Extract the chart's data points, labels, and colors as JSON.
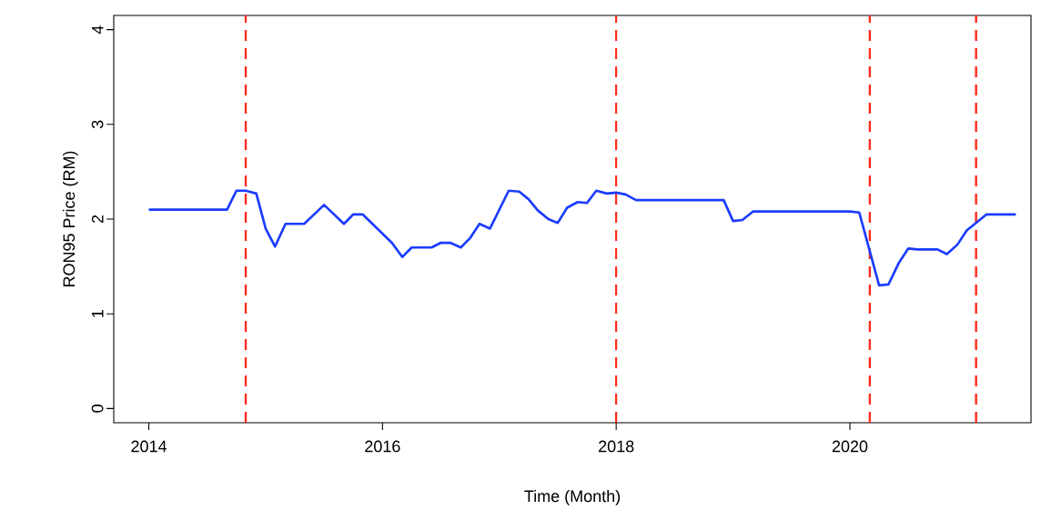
{
  "chart_data": {
    "type": "line",
    "xlabel": "Time (Month)",
    "ylabel": "RON95 Price (RM)",
    "xlim": [
      2013.7,
      2021.55
    ],
    "ylim": [
      -0.15,
      4.15
    ],
    "xticks": [
      2014,
      2016,
      2018,
      2020
    ],
    "yticks": [
      0,
      1,
      2,
      3,
      4
    ],
    "grid": false,
    "marker": "none",
    "line_style": "solid",
    "series": [
      {
        "color": "#1a3cff",
        "x": [
          2014.0,
          2014.67,
          2014.75,
          2014.83,
          2014.92,
          2015.0,
          2015.08,
          2015.17,
          2015.33,
          2015.5,
          2015.67,
          2015.75,
          2015.83,
          2016.08,
          2016.17,
          2016.25,
          2016.42,
          2016.5,
          2016.58,
          2016.67,
          2016.75,
          2016.83,
          2016.92,
          2017.08,
          2017.17,
          2017.25,
          2017.33,
          2017.42,
          2017.5,
          2017.58,
          2017.67,
          2017.75,
          2017.83,
          2017.92,
          2018.0,
          2018.08,
          2018.17,
          2018.92,
          2019.0,
          2019.08,
          2019.17,
          2020.0,
          2020.08,
          2020.25,
          2020.33,
          2020.42,
          2020.5,
          2020.58,
          2020.75,
          2020.83,
          2020.92,
          2021.0,
          2021.17,
          2021.42
        ],
        "values": [
          2.1,
          2.1,
          2.3,
          2.3,
          2.27,
          1.9,
          1.71,
          1.95,
          1.95,
          2.15,
          1.95,
          2.05,
          2.05,
          1.75,
          1.6,
          1.7,
          1.7,
          1.75,
          1.75,
          1.7,
          1.8,
          1.95,
          1.9,
          2.3,
          2.29,
          2.21,
          2.09,
          2.0,
          1.96,
          2.12,
          2.18,
          2.17,
          2.3,
          2.27,
          2.28,
          2.26,
          2.2,
          2.2,
          1.98,
          1.99,
          2.08,
          2.08,
          2.07,
          1.3,
          1.31,
          1.54,
          1.69,
          1.68,
          1.68,
          1.63,
          1.73,
          1.88,
          2.05,
          2.05
        ]
      }
    ],
    "ref_lines": [
      {
        "axis": "x",
        "value": 2014.83,
        "color": "#ff2a1a",
        "line_style": "dashed"
      },
      {
        "axis": "x",
        "value": 2018.0,
        "color": "#ff2a1a",
        "line_style": "dashed"
      },
      {
        "axis": "x",
        "value": 2020.17,
        "color": "#ff2a1a",
        "line_style": "dashed"
      },
      {
        "axis": "x",
        "value": 2021.08,
        "color": "#ff2a1a",
        "line_style": "dashed"
      }
    ]
  }
}
